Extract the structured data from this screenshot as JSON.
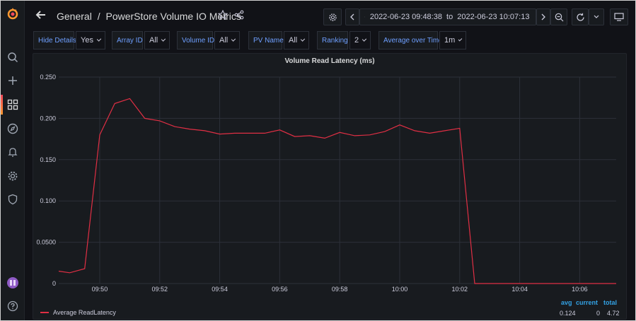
{
  "header": {
    "breadcrumb_folder": "General",
    "separator": "/",
    "dashboard_title": "PowerStore Volume IO Metrics"
  },
  "time_picker": {
    "from": "2022-06-23 09:48:38",
    "to_word": "to",
    "to": "2022-06-23 10:07:13"
  },
  "variables": [
    {
      "label": "Hide Details",
      "value": "Yes"
    },
    {
      "label": "Array ID",
      "value": "All"
    },
    {
      "label": "Volume ID",
      "value": "All"
    },
    {
      "label": "PV Name",
      "value": "All"
    },
    {
      "label": "Ranking",
      "value": "2"
    },
    {
      "label": "Average over Time",
      "value": "1m"
    }
  ],
  "sidebar": {
    "icons": [
      "grafana-logo-icon",
      "search-icon",
      "plus-icon",
      "dashboards-icon",
      "explore-icon",
      "alerting-icon",
      "settings-icon",
      "shield-icon",
      "user-avatar",
      "help-icon"
    ]
  },
  "colors": {
    "accent": "#ff9830",
    "series": "#e02f44",
    "label_blue": "#6e9fff",
    "stats_blue": "#33a2e5"
  },
  "panel": {
    "title": "Volume Read Latency (ms)",
    "legend": {
      "series_name": "Average ReadLatency",
      "headers": {
        "avg": "avg",
        "current": "current",
        "total": "total"
      },
      "values": {
        "avg": "0.124",
        "current": "0",
        "total": "4.72"
      }
    }
  },
  "chart_data": {
    "type": "line",
    "title": "Volume Read Latency (ms)",
    "xlabel": "",
    "ylabel": "",
    "ylim": [
      0,
      0.25
    ],
    "y_ticks": [
      "0",
      "0.0500",
      "0.100",
      "0.150",
      "0.200",
      "0.250"
    ],
    "x_ticks": [
      "09:50",
      "09:52",
      "09:54",
      "09:56",
      "09:58",
      "10:00",
      "10:02",
      "10:04",
      "10:06"
    ],
    "grid": true,
    "legend_position": "bottom-left",
    "series": [
      {
        "name": "Average ReadLatency",
        "color": "#e02f44",
        "x": [
          "09:48:38",
          "09:49:00",
          "09:49:30",
          "09:50:00",
          "09:50:30",
          "09:51:00",
          "09:51:30",
          "09:52:00",
          "09:52:30",
          "09:53:00",
          "09:53:30",
          "09:54:00",
          "09:54:30",
          "09:55:00",
          "09:55:30",
          "09:56:00",
          "09:56:30",
          "09:57:00",
          "09:57:30",
          "09:58:00",
          "09:58:30",
          "09:59:00",
          "09:59:30",
          "10:00:00",
          "10:00:30",
          "10:01:00",
          "10:01:30",
          "10:02:00",
          "10:02:30",
          "10:07:13"
        ],
        "values": [
          0.015,
          0.013,
          0.018,
          0.18,
          0.218,
          0.224,
          0.2,
          0.197,
          0.19,
          0.187,
          0.185,
          0.181,
          0.182,
          0.182,
          0.182,
          0.186,
          0.178,
          0.179,
          0.176,
          0.183,
          0.179,
          0.18,
          0.184,
          0.192,
          0.185,
          0.182,
          0.185,
          0.188,
          0,
          0
        ]
      }
    ]
  }
}
